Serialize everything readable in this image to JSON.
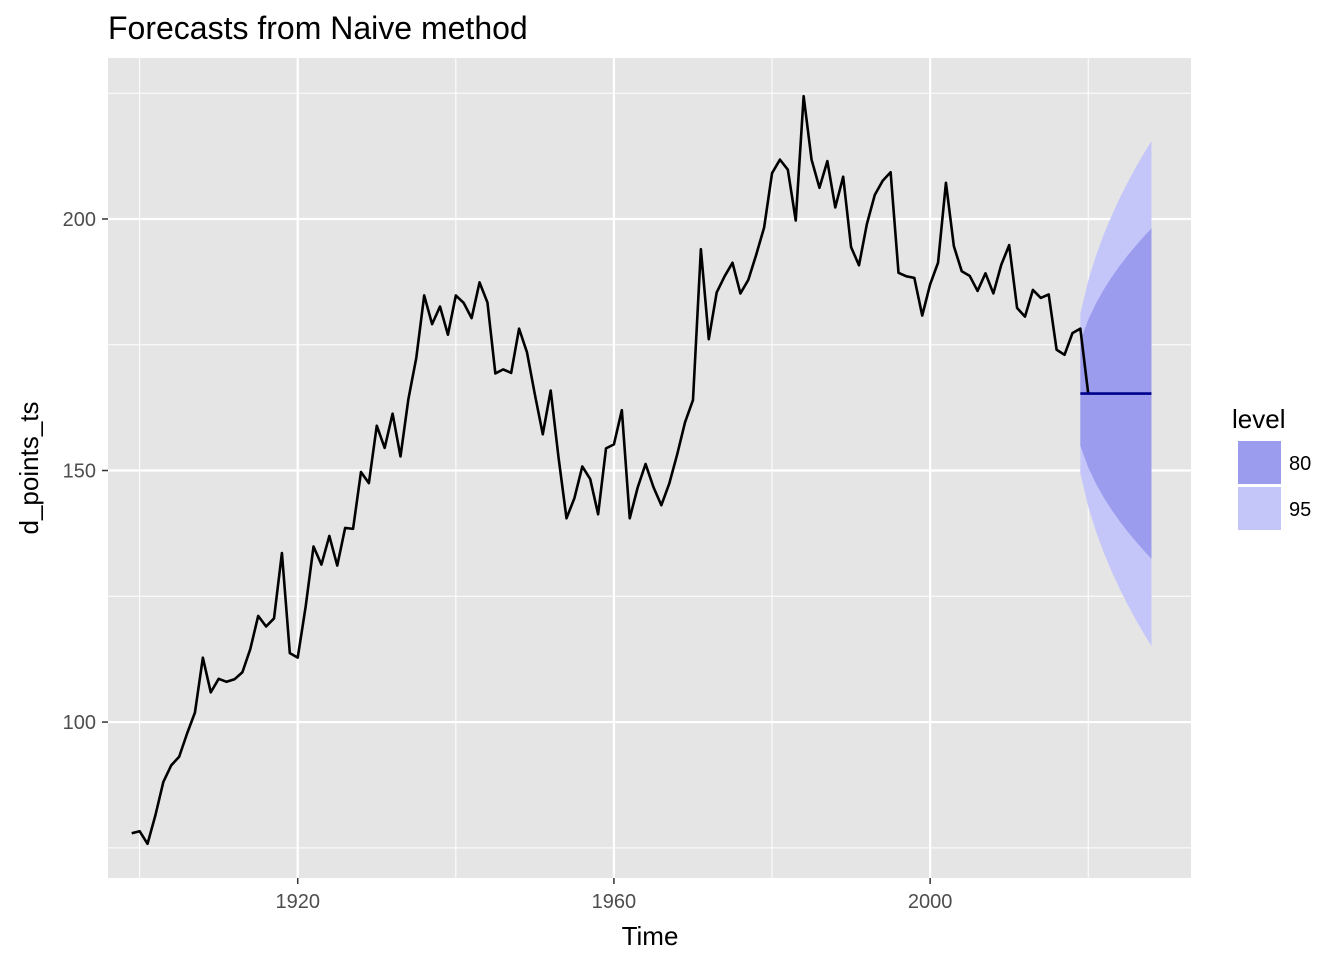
{
  "chart_data": {
    "type": "line",
    "title": "Forecasts from Naive method",
    "xlabel": "Time",
    "ylabel": "d_points_ts",
    "xlim": [
      1896,
      2033
    ],
    "ylim": [
      69,
      232
    ],
    "x_ticks": [
      1920,
      1960,
      2000
    ],
    "y_ticks": [
      100,
      150,
      200
    ],
    "grid": true,
    "colors": {
      "panel": "#e5e5e5",
      "grid_major": "#ffffff",
      "series": "#000000",
      "forecast": "#00008b",
      "band80": "#9b9ced",
      "band95": "#c4c5f8",
      "tick_text": "#4d4d4d"
    },
    "series": [
      {
        "x_start": 1899,
        "x_step": 1,
        "values": [
          77.9,
          78.3,
          75.8,
          81.5,
          88.1,
          91.4,
          93.1,
          97.7,
          101.9,
          112.8,
          105.9,
          108.6,
          108.0,
          108.5,
          109.9,
          114.5,
          121.1,
          119.0,
          120.6,
          133.6,
          113.7,
          112.8,
          122.9,
          134.9,
          131.3,
          137.0,
          131.1,
          138.6,
          138.4,
          149.7,
          147.5,
          158.9,
          154.5,
          161.3,
          152.8,
          164.2,
          172.4,
          184.8,
          179.1,
          182.6,
          177.0,
          184.8,
          183.3,
          180.3,
          187.4,
          183.4,
          169.3,
          170.1,
          169.4,
          178.2,
          173.5,
          165.1,
          157.2,
          165.9,
          152.5,
          140.5,
          144.5,
          150.8,
          148.3,
          141.3,
          154.4,
          155.2,
          162.0,
          140.5,
          146.6,
          151.3,
          146.7,
          143.1,
          147.4,
          153.2,
          159.6,
          164.0,
          194.0,
          176.1,
          185.4,
          188.6,
          191.3,
          185.2,
          187.9,
          192.9,
          198.3,
          209.1,
          211.8,
          209.8,
          199.7,
          224.4,
          211.8,
          206.2,
          211.5,
          202.3,
          208.4,
          194.4,
          190.8,
          199.0,
          204.8,
          207.6,
          209.3,
          189.3,
          188.6,
          188.3,
          180.8,
          187.0,
          191.3,
          207.2,
          194.6,
          189.6,
          188.7,
          185.7,
          189.2,
          185.2,
          190.9,
          194.8,
          182.3,
          180.6,
          185.9,
          184.3,
          185.0,
          174.0,
          173.0,
          177.3,
          178.2,
          165.3
        ]
      }
    ],
    "forecast": {
      "x_start": 2019,
      "x_step": 1,
      "horizon": 10,
      "point": 165.3,
      "sigma": 8.1
    },
    "legend": {
      "title": "level",
      "position": "right",
      "items": [
        {
          "label": "80",
          "color": "#9b9ced"
        },
        {
          "label": "95",
          "color": "#c4c5f8"
        }
      ]
    }
  }
}
